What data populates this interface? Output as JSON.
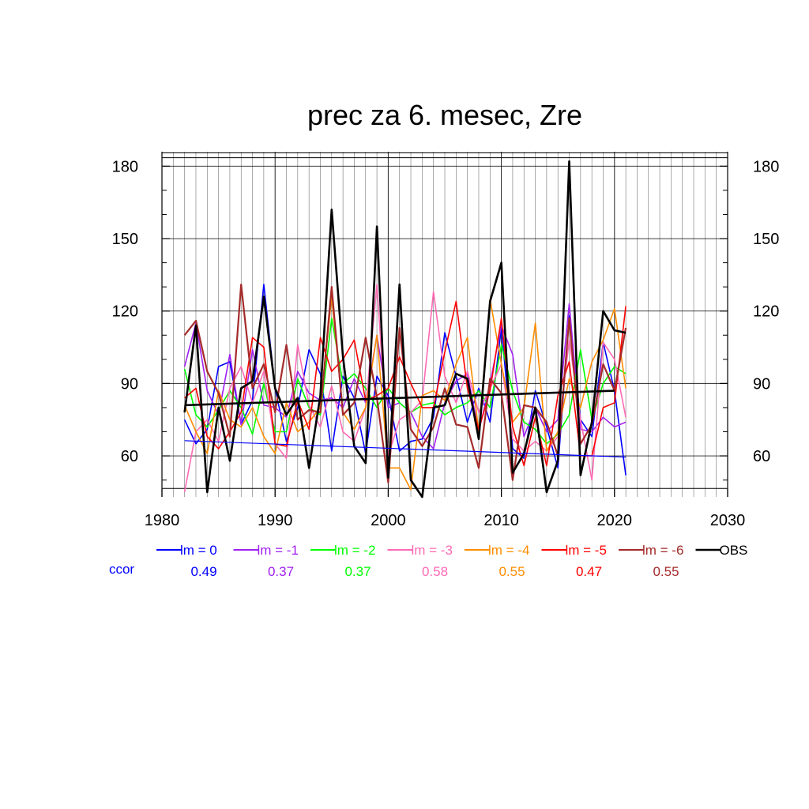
{
  "chart_data": {
    "type": "line",
    "title": "prec za 6. mesec, Zre",
    "xlabel": "",
    "ylabel": "",
    "xlim": [
      1980,
      2030
    ],
    "ylim": [
      43,
      186
    ],
    "x_ticks": [
      "1980",
      "1990",
      "2000",
      "2010",
      "2020",
      "2030"
    ],
    "y_ticks": [
      "60",
      "90",
      "120",
      "150",
      "180"
    ],
    "grid": true,
    "legend_position": "bottom",
    "ccor_label": "ccor",
    "x": [
      1982,
      1983,
      1984,
      1985,
      1986,
      1987,
      1988,
      1989,
      1990,
      1991,
      1992,
      1993,
      1994,
      1995,
      1996,
      1997,
      1998,
      1999,
      2000,
      2001,
      2002,
      2003,
      2004,
      2005,
      2006,
      2007,
      2008,
      2009,
      2010,
      2011,
      2012,
      2013,
      2014,
      2015,
      2016,
      2017,
      2018,
      2019,
      2020,
      2021
    ],
    "series": [
      {
        "name": "lm = 0",
        "ccor": "0.49",
        "color": "#0000ff",
        "width": 1.6,
        "values": [
          75,
          65,
          71,
          97,
          99,
          73,
          83,
          131,
          88,
          66,
          80,
          104,
          94,
          62,
          93,
          84,
          61,
          93,
          85,
          62,
          66,
          67,
          76,
          111,
          93,
          74,
          88,
          74,
          113,
          63,
          59,
          87,
          72,
          55,
          118,
          75,
          68,
          107,
          87,
          52
        ]
      },
      {
        "name": "lm = -1",
        "ccor": "0.37",
        "color": "#a020f0",
        "width": 1.6,
        "values": [
          97,
          115,
          87,
          77,
          102,
          73,
          104,
          81,
          80,
          76,
          95,
          86,
          83,
          84,
          80,
          92,
          82,
          110,
          80,
          82,
          78,
          68,
          63,
          82,
          91,
          94,
          70,
          90,
          114,
          102,
          68,
          80,
          70,
          75,
          123,
          71,
          70,
          76,
          72,
          74
        ]
      },
      {
        "name": "lm = -2",
        "ccor": "0.37",
        "color": "#00ff00",
        "width": 1.6,
        "values": [
          96,
          77,
          72,
          79,
          87,
          80,
          69,
          90,
          70,
          70,
          92,
          80,
          77,
          117,
          90,
          94,
          88,
          80,
          88,
          82,
          78,
          81,
          82,
          77,
          80,
          82,
          87,
          80,
          106,
          87,
          74,
          71,
          65,
          69,
          77,
          104,
          75,
          90,
          97,
          94
        ]
      },
      {
        "name": "lm = -3",
        "ccor": "0.58",
        "color": "#ff69b4",
        "width": 1.6,
        "values": [
          45,
          70,
          75,
          66,
          88,
          97,
          82,
          95,
          65,
          59,
          106,
          81,
          72,
          89,
          70,
          66,
          80,
          131,
          60,
          75,
          78,
          83,
          128,
          93,
          82,
          95,
          78,
          88,
          98,
          67,
          62,
          66,
          62,
          68,
          108,
          75,
          50,
          107,
          100,
          76
        ]
      },
      {
        "name": "lm = -4",
        "ccor": "0.55",
        "color": "#ff8c00",
        "width": 1.6,
        "values": [
          81,
          70,
          61,
          87,
          75,
          72,
          80,
          68,
          61,
          82,
          70,
          74,
          80,
          126,
          78,
          71,
          80,
          110,
          55,
          55,
          46,
          85,
          87,
          83,
          98,
          109,
          70,
          125,
          98,
          74,
          80,
          115,
          62,
          70,
          92,
          80,
          99,
          108,
          121,
          88
        ]
      },
      {
        "name": "lm = -5",
        "ccor": "0.47",
        "color": "#ff0000",
        "width": 1.6,
        "values": [
          84,
          88,
          68,
          63,
          70,
          78,
          109,
          105,
          65,
          64,
          83,
          71,
          109,
          95,
          100,
          108,
          83,
          85,
          88,
          101,
          90,
          80,
          80,
          103,
          124,
          88,
          71,
          87,
          117,
          72,
          56,
          76,
          56,
          85,
          99,
          60,
          60,
          80,
          82,
          122
        ]
      },
      {
        "name": "lm = -6",
        "ccor": "0.55",
        "color": "#a52a2a",
        "width": 2.2,
        "values": [
          110,
          116,
          95,
          86,
          68,
          131,
          88,
          98,
          78,
          106,
          75,
          79,
          78,
          130,
          77,
          82,
          109,
          84,
          49,
          113,
          71,
          64,
          72,
          88,
          73,
          72,
          55,
          92,
          86,
          50,
          81,
          80,
          74,
          60,
          117,
          65,
          73,
          98,
          87,
          113
        ]
      },
      {
        "name": "OBS",
        "ccor": "",
        "color": "#000000",
        "width": 2.6,
        "values": [
          78,
          114,
          45,
          80,
          58,
          88,
          91,
          126,
          88,
          77,
          84,
          55,
          85,
          162,
          101,
          64,
          57,
          155,
          51,
          131,
          50,
          43,
          80,
          81,
          94,
          92,
          67,
          124,
          140,
          53,
          61,
          80,
          45,
          58,
          182,
          52,
          74,
          120,
          112,
          111
        ]
      }
    ],
    "trend_lines": [
      {
        "series": "lm = 0",
        "x": [
          1982,
          2021
        ],
        "y": [
          66.3,
          59.5
        ]
      },
      {
        "series": "OBS",
        "x": [
          1982,
          2020
        ],
        "y": [
          81,
          87
        ]
      }
    ]
  }
}
